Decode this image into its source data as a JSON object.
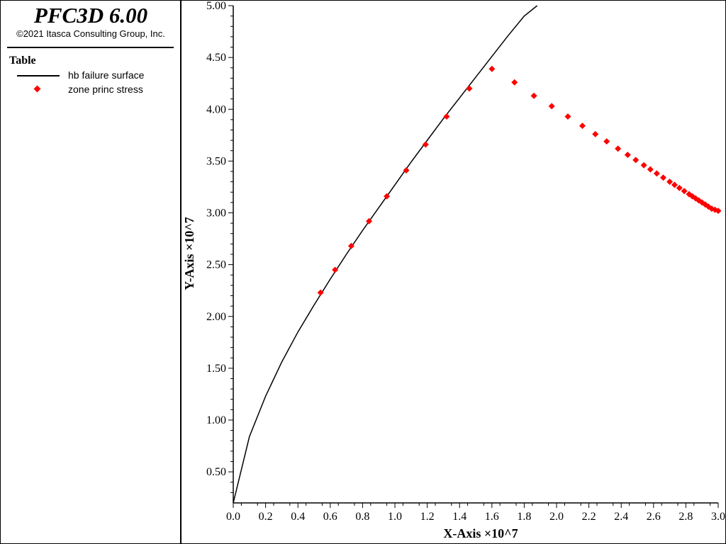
{
  "app": {
    "title": "PFC3D 6.00",
    "copyright": "©2021 Itasca Consulting Group, Inc."
  },
  "legend": {
    "heading": "Table",
    "entries": [
      {
        "label": "hb failure surface",
        "symbol": "line",
        "color": "#000000"
      },
      {
        "label": "zone princ stress",
        "symbol": "diamond",
        "color": "#ff0000"
      }
    ]
  },
  "chart_data": {
    "type": "scatter",
    "xlabel": "X-Axis ×10^7",
    "ylabel": "Y-Axis ×10^7",
    "xlim": [
      0.0,
      3.0
    ],
    "ylim": [
      0.2,
      5.0
    ],
    "x_ticks": [
      "0.0",
      "0.2",
      "0.4",
      "0.6",
      "0.8",
      "1.0",
      "1.2",
      "1.4",
      "1.6",
      "1.8",
      "2.0",
      "2.2",
      "2.4",
      "2.6",
      "2.8",
      "3.0"
    ],
    "y_ticks": [
      "0.50",
      "1.00",
      "1.50",
      "2.00",
      "2.50",
      "3.00",
      "3.50",
      "4.00",
      "4.50",
      "5.00"
    ],
    "grid": false,
    "legend_position": "left-panel",
    "series": [
      {
        "name": "hb failure surface",
        "kind": "line",
        "color": "#000000",
        "x": [
          0.0,
          0.1,
          0.2,
          0.3,
          0.4,
          0.5,
          0.6,
          0.7,
          0.8,
          0.9,
          1.0,
          1.1,
          1.2,
          1.3,
          1.4,
          1.5,
          1.6,
          1.7,
          1.8,
          1.88
        ],
        "y": [
          0.2,
          0.84,
          1.23,
          1.56,
          1.85,
          2.11,
          2.36,
          2.6,
          2.83,
          3.05,
          3.27,
          3.49,
          3.7,
          3.91,
          4.11,
          4.31,
          4.51,
          4.71,
          4.9,
          5.0
        ]
      },
      {
        "name": "zone princ stress",
        "kind": "points",
        "color": "#ff0000",
        "x": [
          0.54,
          0.63,
          0.73,
          0.84,
          0.95,
          1.07,
          1.19,
          1.32,
          1.46,
          1.6,
          1.74,
          1.86,
          1.97,
          2.07,
          2.16,
          2.24,
          2.31,
          2.38,
          2.44,
          2.49,
          2.54,
          2.58,
          2.62,
          2.66,
          2.7,
          2.73,
          2.76,
          2.79,
          2.82,
          2.84,
          2.86,
          2.88,
          2.9,
          2.92,
          2.94,
          2.96,
          2.98,
          3.0
        ],
        "y": [
          2.23,
          2.45,
          2.68,
          2.92,
          3.16,
          3.41,
          3.66,
          3.93,
          4.2,
          4.39,
          4.26,
          4.13,
          4.03,
          3.93,
          3.84,
          3.76,
          3.69,
          3.62,
          3.56,
          3.51,
          3.46,
          3.42,
          3.38,
          3.34,
          3.3,
          3.27,
          3.24,
          3.21,
          3.18,
          3.16,
          3.14,
          3.12,
          3.1,
          3.08,
          3.06,
          3.04,
          3.03,
          3.02
        ]
      }
    ]
  }
}
